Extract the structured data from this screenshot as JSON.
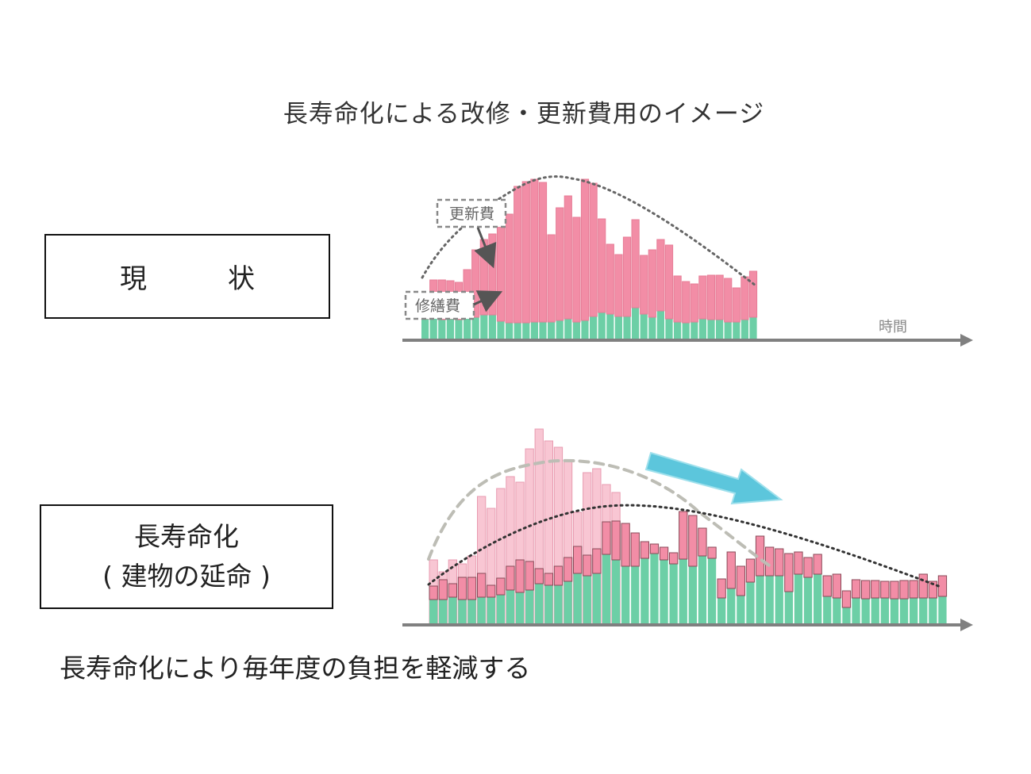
{
  "title": "長寿命化による改修・更新費用のイメージ",
  "labels": {
    "current": "現　　　状",
    "long_life_line1": "長寿命化",
    "long_life_line2": "( 建物の延命 )"
  },
  "callouts": {
    "renewal": "更新費",
    "repair": "修繕費"
  },
  "axis_label": "時間",
  "conclusion": "長寿命化により毎年度の負担を軽減する",
  "colors": {
    "renewal_bar": "#f28da6",
    "repair_bar": "#6ccfa6",
    "ghost_bar": "#f8c6d3",
    "axis": "#808080",
    "arrow": "#5cc6dc"
  },
  "chart_data": [
    {
      "type": "bar",
      "title": "",
      "note": "Stacked bars: repair cost (green, bottom) + renewal cost (pink, top); values in relative units",
      "series": [
        {
          "name": "修繕費",
          "values": [
            25,
            26,
            24,
            25,
            24,
            27,
            27,
            30,
            30,
            22,
            20,
            20,
            20,
            21,
            21,
            21,
            23,
            25,
            21,
            23,
            28,
            33,
            31,
            28,
            28,
            39,
            31,
            27,
            35,
            25,
            21,
            20,
            21,
            25,
            24,
            24,
            21,
            21,
            24,
            27
          ]
        },
        {
          "name": "更新費",
          "values": [
            30,
            48,
            50,
            48,
            47,
            60,
            85,
            95,
            102,
            120,
            137,
            172,
            178,
            180,
            176,
            110,
            142,
            155,
            132,
            178,
            168,
            118,
            88,
            78,
            100,
            111,
            74,
            85,
            90,
            93,
            58,
            52,
            48,
            54,
            56,
            56,
            55,
            43,
            54,
            58
          ]
        }
      ]
    },
    {
      "type": "bar",
      "title": "",
      "note": "Stacked bars after life extension; ghost (light pink) shows the original profile",
      "series": [
        {
          "name": "修繕費",
          "values": [
            30,
            30,
            33,
            30,
            30,
            33,
            33,
            36,
            42,
            39,
            42,
            50,
            48,
            48,
            53,
            63,
            60,
            63,
            87,
            80,
            72,
            72,
            82,
            88,
            80,
            75,
            81,
            72,
            85,
            82,
            32,
            44,
            35,
            52,
            60,
            60,
            60,
            40,
            62,
            58,
            62,
            34,
            32,
            20,
            32,
            31,
            32,
            32,
            31,
            31,
            32,
            32,
            32,
            34
          ]
        },
        {
          "name": "更新費",
          "values": [
            17,
            25,
            17,
            28,
            28,
            30,
            15,
            21,
            30,
            41,
            36,
            19,
            15,
            24,
            30,
            34,
            26,
            31,
            41,
            49,
            54,
            42,
            21,
            12,
            16,
            14,
            60,
            64,
            35,
            14,
            24,
            46,
            37,
            29,
            50,
            36,
            34,
            48,
            28,
            25,
            25,
            26,
            30,
            21,
            23,
            23,
            22,
            21,
            22,
            23,
            22,
            30,
            21,
            26
          ]
        },
        {
          "name": "ghost",
          "values": [
            80,
            65,
            80,
            75,
            85,
            160,
            145,
            170,
            185,
            178,
            220,
            245,
            230,
            222,
            205,
            140,
            190,
            195,
            175,
            165
          ]
        }
      ]
    }
  ]
}
